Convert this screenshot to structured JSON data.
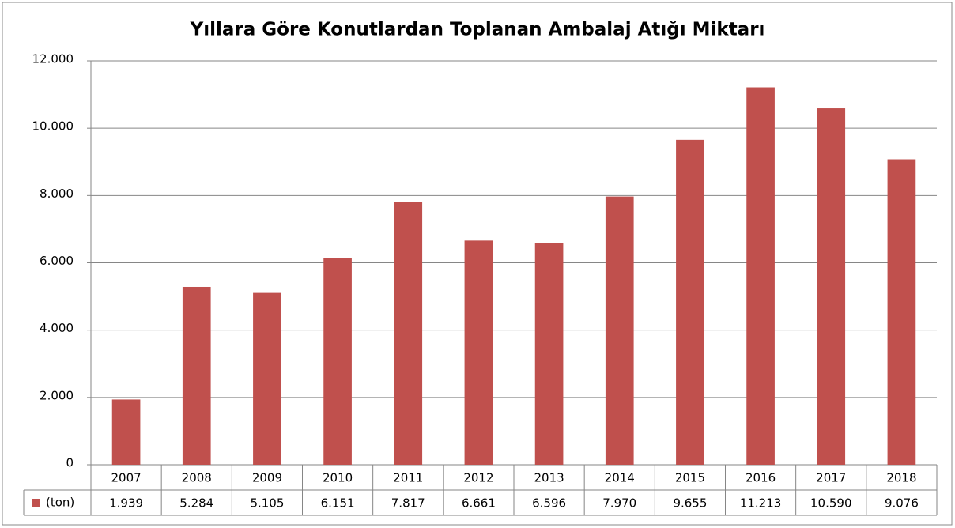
{
  "chart_data": {
    "type": "bar",
    "title": "Yıllara Göre Konutlardan Toplanan Ambalaj Atığı Miktarı",
    "categories": [
      "2007",
      "2008",
      "2009",
      "2010",
      "2011",
      "2012",
      "2013",
      "2014",
      "2015",
      "2016",
      "2017",
      "2018"
    ],
    "series": [
      {
        "name": "(ton)",
        "color": "#c0504d",
        "values": [
          1939,
          5284,
          5105,
          6151,
          7817,
          6661,
          6596,
          7970,
          9655,
          11213,
          10590,
          9076
        ],
        "value_labels": [
          "1.939",
          "5.284",
          "5.105",
          "6.151",
          "7.817",
          "6.661",
          "6.596",
          "7.970",
          "9.655",
          "11.213",
          "10.590",
          "9.076"
        ]
      }
    ],
    "ylim": [
      0,
      12000
    ],
    "yticks": [
      0,
      {
        "value": 2000,
        "label": "2.000"
      },
      {
        "value": 4000,
        "label": "4.000"
      },
      {
        "value": 6000,
        "label": "6.000"
      },
      {
        "value": 8000,
        "label": "8.000"
      },
      {
        "value": 10000,
        "label": "10.000"
      },
      {
        "value": 12000,
        "label": "12.000"
      }
    ],
    "grid": true
  }
}
